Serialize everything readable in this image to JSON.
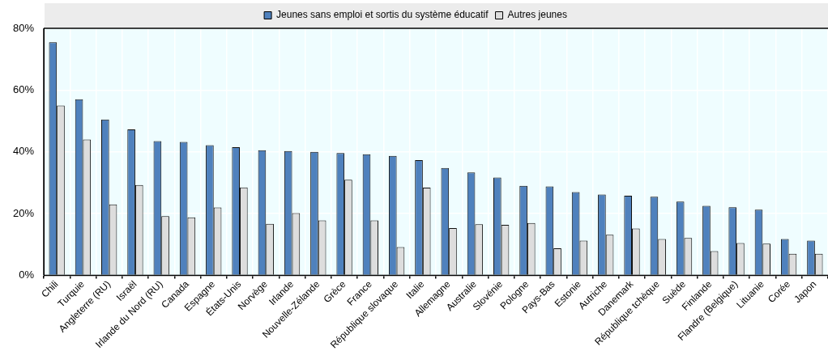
{
  "chart_data": {
    "type": "bar",
    "categories": [
      "Chili",
      "Turquie",
      "Angleterre (RU)",
      "Israël",
      "Irlande du Nord (RU)",
      "Canada",
      "Espagne",
      "États-Unis",
      "Norvège",
      "Irlande",
      "Nouvelle-Zélande",
      "Grèce",
      "France",
      "République slovaque",
      "Italie",
      "Allemagne",
      "Australie",
      "Slovénie",
      "Pologne",
      "Pays-Bas",
      "Estonie",
      "Autriche",
      "Danemark",
      "République tchèque",
      "Suède",
      "Finlande",
      "Flandre (Belgique)",
      "Lituanie",
      "Corée",
      "Japon"
    ],
    "series": [
      {
        "name": "Jeunes sans emploi et sortis du système éducatif",
        "color": "#4f81bd",
        "values": [
          75.5,
          57,
          50.5,
          47.3,
          43.5,
          43.2,
          42.2,
          41.5,
          40.5,
          40.3,
          40,
          39.6,
          39.2,
          38.7,
          37.3,
          34.8,
          33.3,
          31.7,
          29,
          28.8,
          27,
          26.2,
          25.8,
          25.5,
          23.9,
          22.5,
          22.1,
          21.3,
          11.8,
          11.3
        ]
      },
      {
        "name": "Autres jeunes",
        "color": "#dddddd",
        "values": [
          55,
          44,
          23,
          29.3,
          19.2,
          18.8,
          22,
          28.5,
          16.7,
          20.2,
          17.8,
          31,
          17.8,
          9.2,
          28.4,
          15.3,
          16.6,
          16.4,
          17,
          8.8,
          11.3,
          13.2,
          15.2,
          11.8,
          12.1,
          7.9,
          10.5,
          10.3,
          7,
          7
        ]
      }
    ],
    "ylim": [
      0,
      80
    ],
    "yticks": [
      {
        "value": 0,
        "label": "0%"
      },
      {
        "value": 20,
        "label": "20%"
      },
      {
        "value": 40,
        "label": "40%"
      },
      {
        "value": 60,
        "label": "60%"
      },
      {
        "value": 80,
        "label": "80%"
      }
    ],
    "grid": true,
    "legend": "top"
  }
}
